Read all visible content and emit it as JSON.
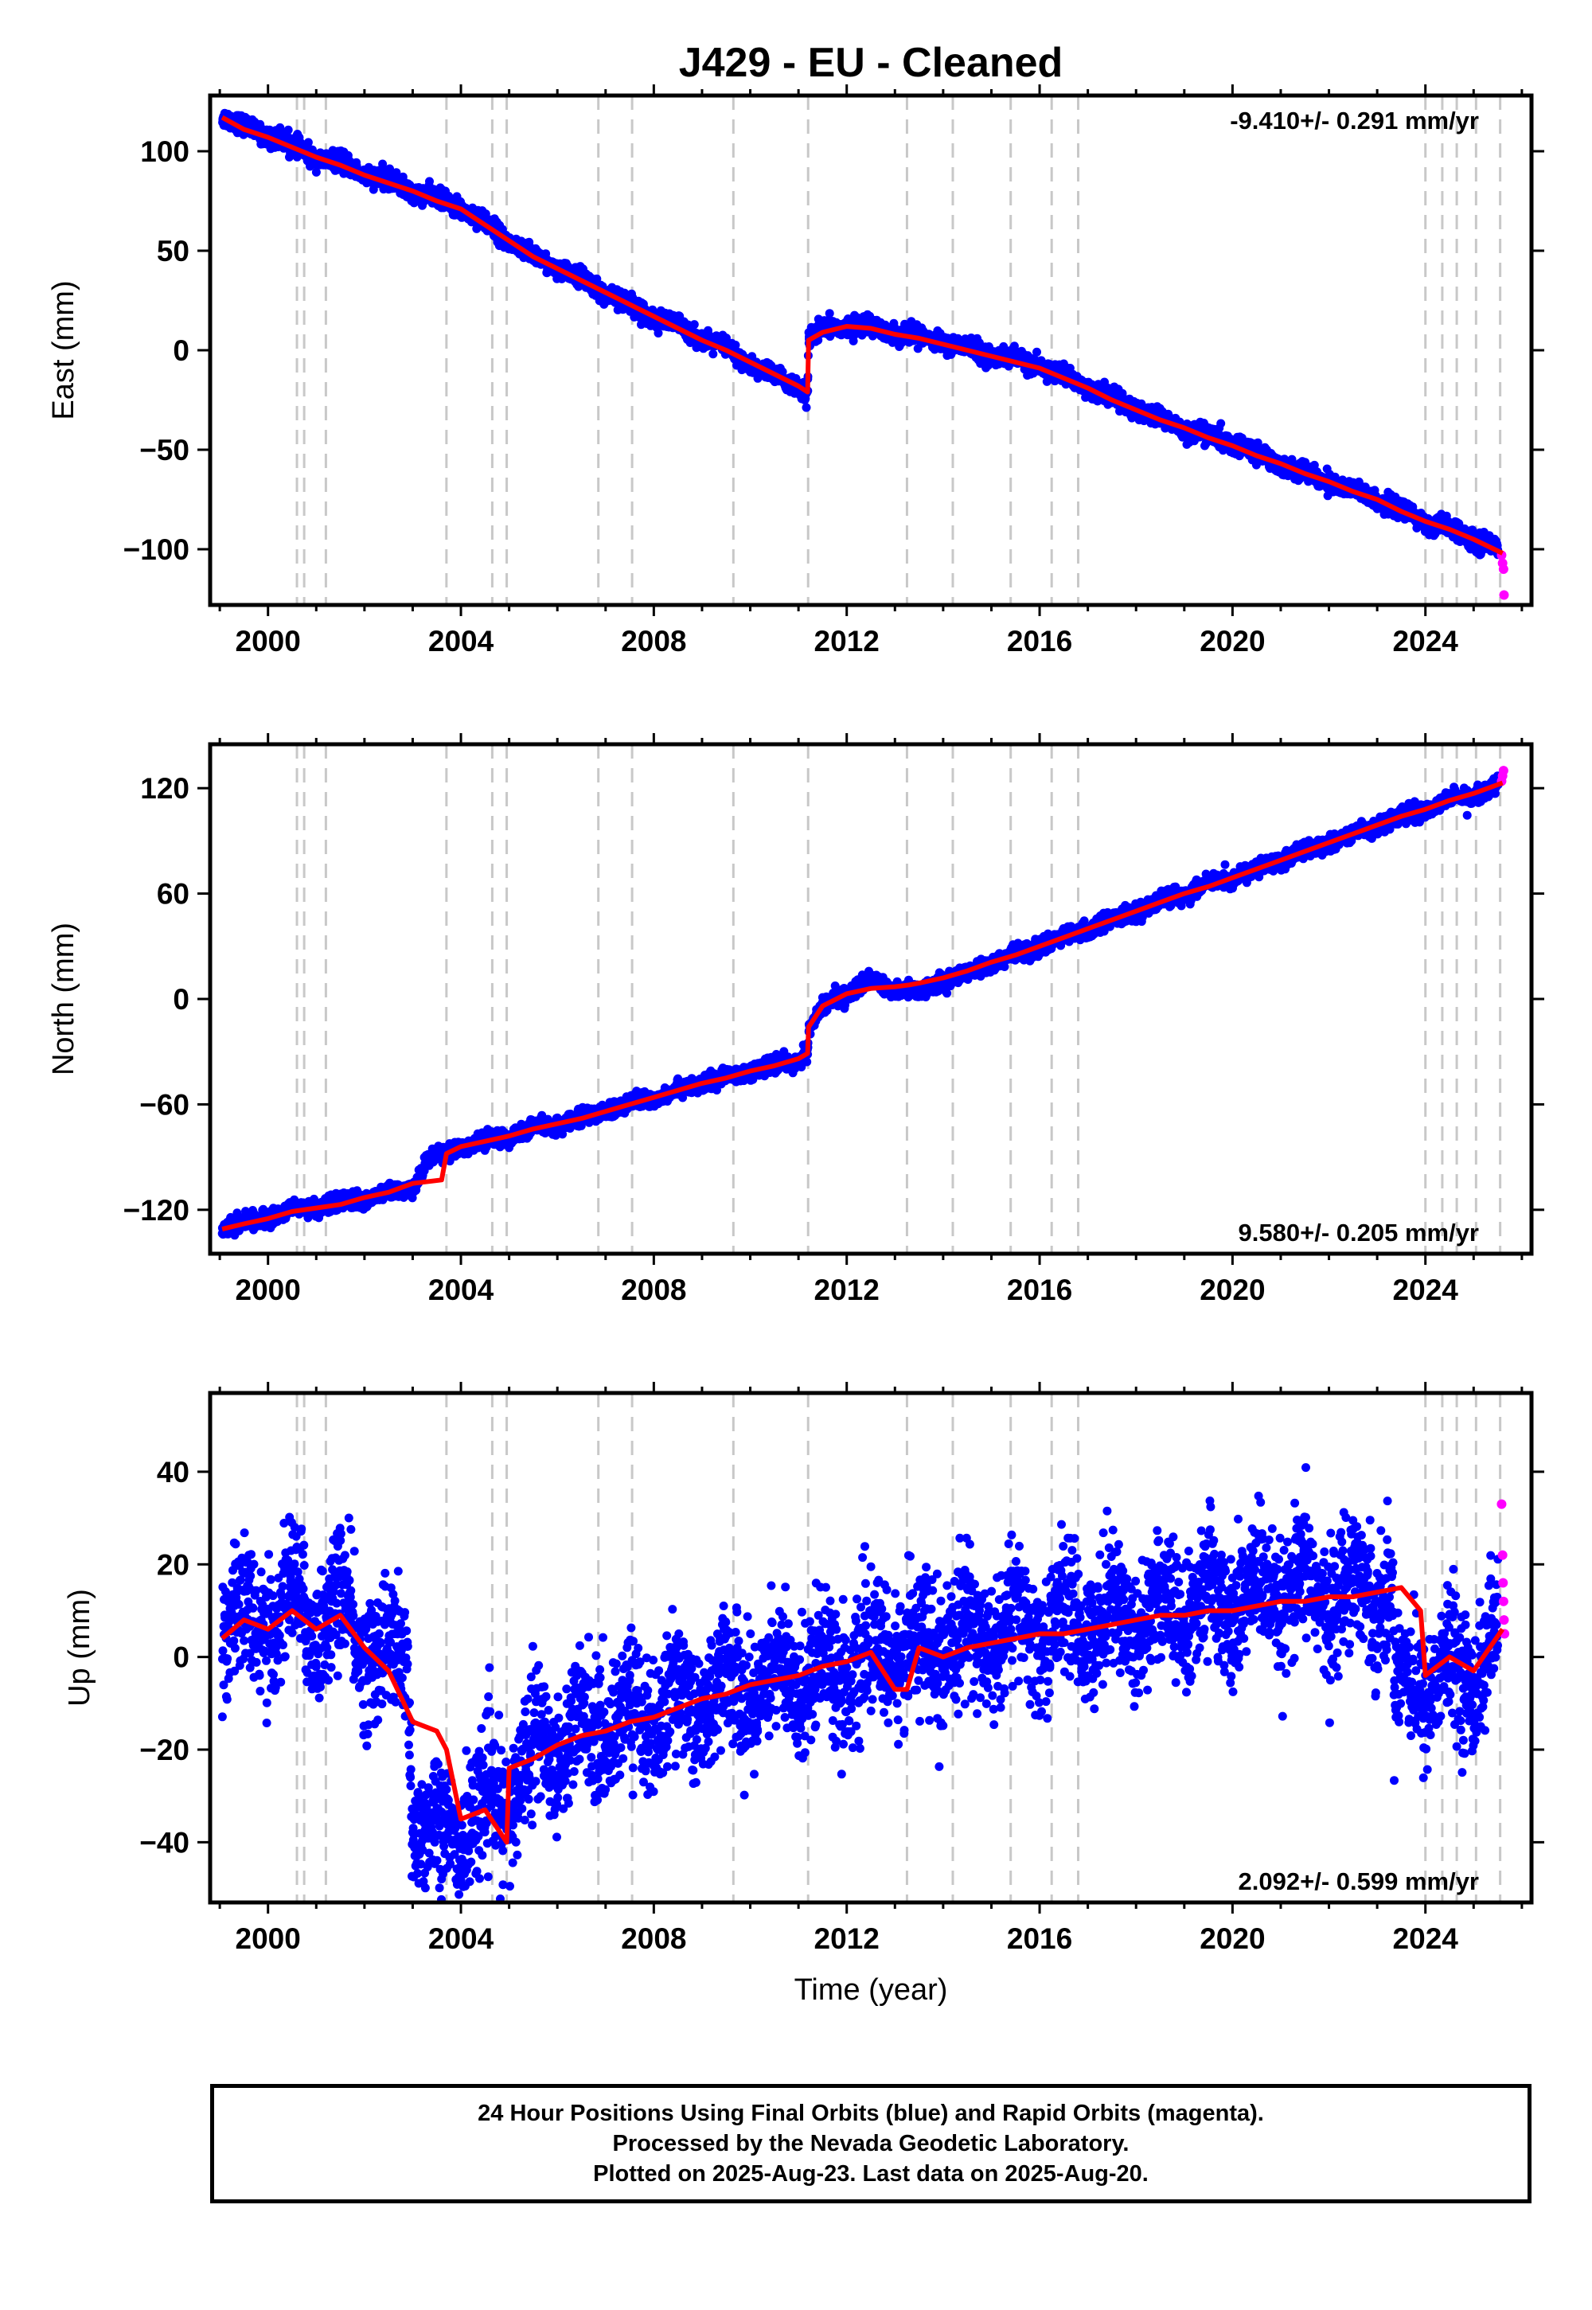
{
  "title": "J429  - EU - Cleaned",
  "colors": {
    "final_orbits": "#0000ff",
    "rapid_orbits": "#ff00ff",
    "model": "#ff0000",
    "event_lines": "#c8c8c8",
    "axes": "#000000"
  },
  "footer": {
    "lines": [
      "24 Hour Positions Using Final Orbits (blue) and Rapid Orbits (magenta).",
      "Processed by the Nevada Geodetic Laboratory.",
      "Plotted on 2025-Aug-23. Last data on 2025-Aug-20."
    ]
  },
  "chart_data": [
    {
      "type": "scatter",
      "panel": "east",
      "title": "J429  - EU - Cleaned",
      "ylabel": "East (mm)",
      "xlabel": "",
      "xlim": [
        1998.8,
        2026.2
      ],
      "ylim": [
        -128,
        128
      ],
      "xticks": [
        2000,
        2004,
        2008,
        2012,
        2016,
        2020,
        2024
      ],
      "xtick_labels": [
        "2000",
        "2004",
        "2008",
        "2012",
        "2016",
        "2020",
        "2024"
      ],
      "yticks": [
        -100,
        -50,
        0,
        50,
        100
      ],
      "ytick_labels": [
        "−100",
        "−50",
        "0",
        "50",
        "100"
      ],
      "rate_label": "-9.410+/- 0.291 mm/yr",
      "rate_position": "top-right",
      "event_lines": [
        2000.6,
        2000.75,
        2001.2,
        2003.7,
        2004.65,
        2004.95,
        2006.85,
        2007.55,
        2009.65,
        2011.2,
        2013.25,
        2014.2,
        2015.4,
        2016.25,
        2016.8,
        2024.0,
        2024.35,
        2024.65,
        2025.05,
        2025.55
      ],
      "series": [
        {
          "name": "Final Orbits",
          "color": "#0000ff",
          "x": [
            1999.05,
            1999.5,
            2000.0,
            2000.5,
            2001.0,
            2001.5,
            2002.0,
            2002.5,
            2003.0,
            2003.5,
            2004.0,
            2004.5,
            2005.0,
            2005.5,
            2006.0,
            2006.5,
            2007.0,
            2007.5,
            2008.0,
            2008.5,
            2009.0,
            2009.5,
            2010.0,
            2010.5,
            2011.0,
            2011.19,
            2011.21,
            2011.5,
            2012.0,
            2012.5,
            2013.0,
            2013.5,
            2014.0,
            2014.5,
            2015.0,
            2015.5,
            2016.0,
            2016.5,
            2017.0,
            2017.5,
            2018.0,
            2018.5,
            2019.0,
            2019.5,
            2020.0,
            2020.5,
            2021.0,
            2021.5,
            2022.0,
            2022.5,
            2023.0,
            2023.5,
            2024.0,
            2024.5,
            2025.0,
            2025.5
          ],
          "values": [
            118,
            112,
            108,
            103,
            97,
            94,
            89,
            85,
            80,
            76,
            72,
            64,
            55,
            47,
            41,
            36,
            29,
            23,
            17,
            12,
            6,
            1,
            -7,
            -13,
            -19,
            -22,
            6,
            10,
            13,
            12,
            9,
            7,
            4,
            1,
            -2,
            -5,
            -8,
            -13,
            -18,
            -24,
            -30,
            -35,
            -39,
            -43,
            -47,
            -52,
            -57,
            -62,
            -66,
            -71,
            -75,
            -81,
            -86,
            -90,
            -95,
            -99
          ]
        },
        {
          "name": "Rapid Orbits",
          "color": "#ff00ff",
          "x": [
            2025.58,
            2025.6,
            2025.62,
            2025.63
          ],
          "values": [
            -103,
            -107,
            -110,
            -123
          ]
        },
        {
          "name": "Model",
          "color": "#ff0000",
          "x": [
            1999.05,
            1999.5,
            2000.0,
            2000.5,
            2001.0,
            2001.5,
            2002.0,
            2002.5,
            2003.0,
            2003.5,
            2004.0,
            2004.5,
            2005.0,
            2005.5,
            2006.0,
            2006.5,
            2007.0,
            2007.5,
            2008.0,
            2008.5,
            2009.0,
            2009.5,
            2010.0,
            2010.5,
            2011.0,
            2011.19,
            2011.21,
            2011.5,
            2012.0,
            2012.5,
            2013.0,
            2013.5,
            2014.0,
            2014.5,
            2015.0,
            2015.5,
            2016.0,
            2016.5,
            2017.0,
            2017.5,
            2018.0,
            2018.5,
            2019.0,
            2019.5,
            2020.0,
            2020.5,
            2021.0,
            2021.5,
            2022.0,
            2022.5,
            2023.0,
            2023.5,
            2024.0,
            2024.5,
            2025.0,
            2025.6
          ],
          "values": [
            117,
            111,
            107,
            102,
            97,
            93,
            88,
            84,
            80,
            75,
            71,
            63,
            55,
            47,
            41,
            35,
            29,
            23,
            17,
            11,
            5,
            0,
            -6,
            -12,
            -18,
            -21,
            5,
            9,
            12,
            11,
            8,
            6,
            3,
            0,
            -3,
            -6,
            -9,
            -14,
            -19,
            -25,
            -30,
            -35,
            -39,
            -44,
            -48,
            -53,
            -57,
            -62,
            -66,
            -71,
            -75,
            -81,
            -86,
            -90,
            -95,
            -102
          ]
        }
      ]
    },
    {
      "type": "scatter",
      "panel": "north",
      "title": "",
      "ylabel": "North (mm)",
      "xlabel": "",
      "xlim": [
        1998.8,
        2026.2
      ],
      "ylim": [
        -145,
        145
      ],
      "xticks": [
        2000,
        2004,
        2008,
        2012,
        2016,
        2020,
        2024
      ],
      "xtick_labels": [
        "2000",
        "2004",
        "2008",
        "2012",
        "2016",
        "2020",
        "2024"
      ],
      "yticks": [
        -120,
        -60,
        0,
        60,
        120
      ],
      "ytick_labels": [
        "−120",
        "−60",
        "0",
        "60",
        "120"
      ],
      "rate_label": "9.580+/- 0.205 mm/yr",
      "rate_position": "bottom-right",
      "event_lines": [
        2000.6,
        2000.75,
        2001.2,
        2003.7,
        2004.65,
        2004.95,
        2006.85,
        2007.55,
        2009.65,
        2011.2,
        2013.25,
        2014.2,
        2015.4,
        2016.25,
        2016.8,
        2024.0,
        2024.35,
        2024.65,
        2025.05,
        2025.55
      ],
      "series": [
        {
          "name": "Final Orbits",
          "color": "#0000ff",
          "x": [
            1999.05,
            1999.5,
            2000.0,
            2000.5,
            2001.0,
            2001.5,
            2002.0,
            2002.5,
            2003.0,
            2003.3,
            2003.6,
            2004.0,
            2004.5,
            2005.0,
            2005.5,
            2006.0,
            2006.5,
            2007.0,
            2007.5,
            2008.0,
            2008.5,
            2009.0,
            2009.5,
            2010.0,
            2010.5,
            2011.0,
            2011.19,
            2011.21,
            2011.5,
            2012.0,
            2012.5,
            2013.0,
            2013.5,
            2014.0,
            2014.5,
            2015.0,
            2015.5,
            2016.0,
            2016.5,
            2017.0,
            2017.5,
            2018.0,
            2018.5,
            2019.0,
            2019.5,
            2020.0,
            2020.5,
            2021.0,
            2021.5,
            2022.0,
            2022.5,
            2023.0,
            2023.5,
            2024.0,
            2024.5,
            2025.0,
            2025.5
          ],
          "values": [
            -130,
            -128,
            -124,
            -120,
            -118,
            -116,
            -114,
            -111,
            -108,
            -92,
            -88,
            -84,
            -81,
            -78,
            -74,
            -71,
            -68,
            -64,
            -60,
            -56,
            -52,
            -48,
            -45,
            -41,
            -38,
            -34,
            -31,
            -17,
            -5,
            4,
            10,
            6,
            4,
            10,
            15,
            21,
            25,
            30,
            35,
            40,
            45,
            50,
            55,
            60,
            65,
            69,
            74,
            79,
            84,
            89,
            94,
            99,
            104,
            108,
            113,
            117,
            121
          ]
        },
        {
          "name": "Rapid Orbits",
          "color": "#ff00ff",
          "x": [
            2025.58,
            2025.6,
            2025.62
          ],
          "values": [
            124,
            127,
            130
          ]
        },
        {
          "name": "Model",
          "color": "#ff0000",
          "x": [
            1999.05,
            1999.5,
            2000.0,
            2000.5,
            2001.0,
            2001.5,
            2002.0,
            2002.5,
            2003.0,
            2003.6,
            2003.7,
            2004.0,
            2004.5,
            2005.0,
            2005.5,
            2006.0,
            2006.5,
            2007.0,
            2007.5,
            2008.0,
            2008.5,
            2009.0,
            2009.5,
            2010.0,
            2010.5,
            2011.0,
            2011.19,
            2011.21,
            2011.5,
            2012.0,
            2012.5,
            2013.0,
            2013.3,
            2013.5,
            2014.0,
            2014.5,
            2015.0,
            2015.5,
            2016.0,
            2016.5,
            2017.0,
            2017.5,
            2018.0,
            2018.5,
            2019.0,
            2019.5,
            2020.0,
            2020.5,
            2021.0,
            2021.5,
            2022.0,
            2022.5,
            2023.0,
            2023.5,
            2024.0,
            2024.5,
            2025.0,
            2025.6
          ],
          "values": [
            -131,
            -128,
            -125,
            -121,
            -119,
            -117,
            -113,
            -110,
            -105,
            -103,
            -88,
            -84,
            -81,
            -78,
            -74,
            -71,
            -68,
            -64,
            -60,
            -56,
            -52,
            -48,
            -45,
            -41,
            -38,
            -34,
            -31,
            -16,
            -4,
            3,
            6,
            7,
            8,
            9,
            12,
            16,
            21,
            25,
            30,
            35,
            40,
            45,
            50,
            55,
            60,
            64,
            69,
            74,
            79,
            84,
            89,
            94,
            99,
            104,
            108,
            113,
            117,
            123
          ]
        }
      ]
    },
    {
      "type": "scatter",
      "panel": "up",
      "title": "",
      "ylabel": "Up (mm)",
      "xlabel": "Time (year)",
      "xlim": [
        1998.8,
        2026.2
      ],
      "ylim": [
        -53,
        57
      ],
      "xticks": [
        2000,
        2004,
        2008,
        2012,
        2016,
        2020,
        2024
      ],
      "xtick_labels": [
        "2000",
        "2004",
        "2008",
        "2012",
        "2016",
        "2020",
        "2024"
      ],
      "yticks": [
        -40,
        -20,
        0,
        20,
        40
      ],
      "ytick_labels": [
        "−40",
        "−20",
        "0",
        "20",
        "40"
      ],
      "rate_label": "2.092+/- 0.599 mm/yr",
      "rate_position": "bottom-right",
      "event_lines": [
        2000.6,
        2000.75,
        2001.2,
        2003.7,
        2004.65,
        2004.95,
        2006.85,
        2007.55,
        2009.65,
        2011.2,
        2013.25,
        2014.2,
        2015.4,
        2016.25,
        2016.8,
        2024.0,
        2024.35,
        2024.65,
        2025.05,
        2025.55
      ],
      "series": [
        {
          "name": "Final Orbits",
          "color": "#0000ff",
          "scatter_sd": 7,
          "x": [
            1999.05,
            1999.5,
            2000.0,
            2000.5,
            2001.0,
            2001.5,
            2002.0,
            2002.5,
            2002.9,
            2003.0,
            2003.6,
            2004.0,
            2004.5,
            2005.0,
            2005.5,
            2006.0,
            2006.5,
            2007.0,
            2007.5,
            2008.0,
            2008.5,
            2009.0,
            2009.5,
            2010.0,
            2010.5,
            2011.0,
            2011.5,
            2012.0,
            2012.5,
            2013.0,
            2013.5,
            2014.0,
            2014.5,
            2015.0,
            2015.5,
            2016.0,
            2016.5,
            2017.0,
            2017.5,
            2018.0,
            2018.5,
            2019.0,
            2019.5,
            2020.0,
            2020.5,
            2021.0,
            2021.5,
            2022.0,
            2022.5,
            2023.0,
            2023.3,
            2023.35,
            2024.0,
            2024.5,
            2025.0,
            2025.5
          ],
          "values": [
            6,
            9,
            7,
            12,
            8,
            10,
            4,
            -2,
            0,
            -36,
            -38,
            -36,
            -34,
            -30,
            -20,
            -18,
            -16,
            -14,
            -13,
            -12,
            -10,
            -9,
            -7,
            -6,
            -5,
            -4,
            -3,
            -2,
            -2,
            3,
            1,
            2,
            4,
            5,
            6,
            6,
            7,
            8,
            9,
            9,
            10,
            10,
            11,
            12,
            13,
            13,
            14,
            14,
            15,
            15,
            15,
            -6,
            -5,
            -4,
            -3,
            2
          ]
        },
        {
          "name": "Rapid Orbits",
          "color": "#ff00ff",
          "x": [
            2025.58,
            2025.6,
            2025.61,
            2025.62,
            2025.63,
            2025.64
          ],
          "values": [
            33,
            22,
            16,
            12,
            8,
            5
          ]
        },
        {
          "name": "Model",
          "color": "#ff0000",
          "x": [
            1999.05,
            1999.5,
            2000.0,
            2000.5,
            2001.0,
            2001.5,
            2002.0,
            2002.5,
            2003.0,
            2003.5,
            2003.7,
            2004.0,
            2004.5,
            2004.95,
            2005.0,
            2005.5,
            2006.0,
            2006.5,
            2007.0,
            2007.5,
            2008.0,
            2008.5,
            2009.0,
            2009.5,
            2010.0,
            2010.5,
            2011.0,
            2011.5,
            2012.0,
            2012.5,
            2013.0,
            2013.25,
            2013.5,
            2014.0,
            2014.5,
            2015.0,
            2015.5,
            2016.0,
            2016.5,
            2017.0,
            2017.5,
            2018.0,
            2018.5,
            2019.0,
            2019.5,
            2020.0,
            2020.5,
            2021.0,
            2021.5,
            2022.0,
            2022.5,
            2023.0,
            2023.5,
            2023.9,
            2024.0,
            2024.5,
            2025.0,
            2025.6
          ],
          "values": [
            4,
            8,
            6,
            10,
            6,
            9,
            2,
            -3,
            -14,
            -16,
            -20,
            -35,
            -33,
            -40,
            -24,
            -22,
            -19,
            -17,
            -16,
            -14,
            -13,
            -11,
            -9,
            -8,
            -6,
            -5,
            -4,
            -2,
            -1,
            1,
            -7,
            -7,
            2,
            0,
            2,
            3,
            4,
            5,
            5,
            6,
            7,
            8,
            9,
            9,
            10,
            10,
            11,
            12,
            12,
            13,
            13,
            14,
            15,
            10,
            -4,
            0,
            -3,
            6
          ]
        }
      ]
    }
  ]
}
